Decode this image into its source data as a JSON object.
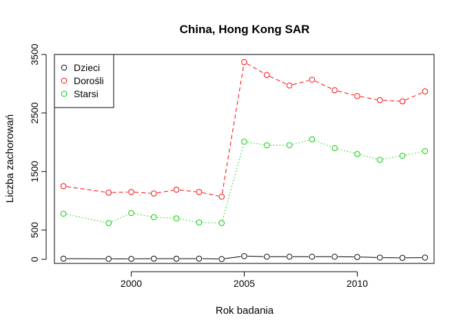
{
  "chart_data": {
    "type": "line",
    "title": "China, Hong Kong SAR",
    "xlabel": "Rok badania",
    "ylabel": "Liczba zachorowań",
    "xlim": [
      1996.6,
      2013.4
    ],
    "ylim": [
      -70,
      3500
    ],
    "xticks": [
      2000,
      2005,
      2010
    ],
    "xtick_labels": [
      "2000",
      "2005",
      "2010"
    ],
    "yticks": [
      0,
      500,
      1500,
      2500,
      3500
    ],
    "ytick_labels": [
      "0",
      "500",
      "1500",
      "2500",
      "3500"
    ],
    "grid": false,
    "legend_position": "top-left",
    "series": [
      {
        "name": "Dzieci",
        "color": "#000000",
        "line_style": "solid",
        "x": [
          1997,
          1999,
          2000,
          2001,
          2002,
          2003,
          2004,
          2005,
          2006,
          2007,
          2008,
          2009,
          2010,
          2011,
          2012,
          2013
        ],
        "values": [
          12,
          8,
          8,
          12,
          10,
          12,
          5,
          55,
          45,
          45,
          45,
          45,
          40,
          30,
          25,
          30
        ]
      },
      {
        "name": "Dorośli",
        "color": "#ff0000",
        "line_style": "dashed",
        "x": [
          1997,
          1999,
          2000,
          2001,
          2002,
          2003,
          2004,
          2005,
          2006,
          2007,
          2008,
          2009,
          2010,
          2011,
          2012,
          2013
        ],
        "values": [
          1250,
          1140,
          1150,
          1125,
          1190,
          1150,
          1070,
          3370,
          3150,
          2970,
          3070,
          2890,
          2790,
          2720,
          2700,
          2870
        ]
      },
      {
        "name": "Starsi",
        "color": "#00cd00",
        "line_style": "dotted",
        "x": [
          1997,
          1999,
          2000,
          2001,
          2002,
          2003,
          2004,
          2005,
          2006,
          2007,
          2008,
          2009,
          2010,
          2011,
          2012,
          2013
        ],
        "values": [
          780,
          620,
          790,
          720,
          700,
          630,
          620,
          2010,
          1950,
          1950,
          2050,
          1900,
          1800,
          1700,
          1770,
          1850
        ]
      }
    ]
  }
}
